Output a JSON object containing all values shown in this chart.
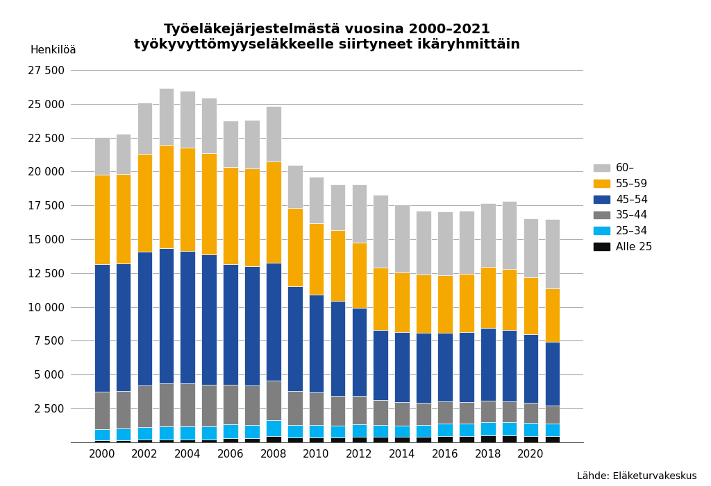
{
  "title_line1": "Työeläkejärjestelmästä vuosina 2000–2021",
  "title_line2": "työkyvyttömyyseläkkeelle siirtyneet ikäryhmittäin",
  "ylabel": "Henkilöä",
  "source": "Lähde: Eläketurvakeskus",
  "years": [
    2000,
    2001,
    2002,
    2003,
    2004,
    2005,
    2006,
    2007,
    2008,
    2009,
    2010,
    2011,
    2012,
    2013,
    2014,
    2015,
    2016,
    2017,
    2018,
    2019,
    2020,
    2021
  ],
  "age_groups": [
    "Alle 25",
    "25–34",
    "35–44",
    "45–54",
    "55–59",
    "60–"
  ],
  "colors": [
    "#0d0d0d",
    "#00b0f0",
    "#7f7f7f",
    "#1f4e9e",
    "#f5a800",
    "#c0c0c0"
  ],
  "data": {
    "Alle 25": [
      150,
      150,
      200,
      200,
      200,
      200,
      300,
      300,
      450,
      350,
      350,
      350,
      400,
      400,
      400,
      400,
      450,
      450,
      500,
      500,
      450,
      450
    ],
    "25–34": [
      800,
      850,
      900,
      950,
      950,
      950,
      1050,
      1000,
      1200,
      950,
      950,
      900,
      950,
      900,
      850,
      900,
      950,
      950,
      1000,
      1000,
      1000,
      950
    ],
    "35–44": [
      2800,
      2800,
      3100,
      3200,
      3200,
      3100,
      2900,
      2900,
      2900,
      2500,
      2400,
      2200,
      2100,
      1800,
      1700,
      1600,
      1600,
      1550,
      1550,
      1500,
      1450,
      1300
    ],
    "45–54": [
      9400,
      9400,
      9900,
      10000,
      9800,
      9600,
      8900,
      8800,
      8700,
      7700,
      7200,
      7000,
      6500,
      5200,
      5200,
      5200,
      5100,
      5200,
      5400,
      5300,
      5100,
      4700
    ],
    "55–59": [
      6600,
      6600,
      7200,
      7600,
      7600,
      7500,
      7200,
      7200,
      7500,
      5800,
      5300,
      5200,
      4800,
      4600,
      4400,
      4300,
      4250,
      4300,
      4500,
      4500,
      4200,
      3950
    ],
    "60–": [
      2800,
      3000,
      3800,
      4200,
      4200,
      4100,
      3400,
      3600,
      4100,
      3200,
      3400,
      3400,
      4300,
      5400,
      5000,
      4700,
      4700,
      4650,
      4700,
      5000,
      4350,
      5150
    ]
  },
  "ylim": [
    0,
    28000
  ],
  "yticks": [
    0,
    2500,
    5000,
    7500,
    10000,
    12500,
    15000,
    17500,
    20000,
    22500,
    25000,
    27500
  ],
  "ytick_labels": [
    "",
    "2 500",
    "5 000",
    "7 500",
    "10 000",
    "12 500",
    "15 000",
    "17 500",
    "20 000",
    "22 500",
    "25 000",
    "27 500"
  ],
  "background_color": "#ffffff",
  "grid_color": "#b0b0b0"
}
